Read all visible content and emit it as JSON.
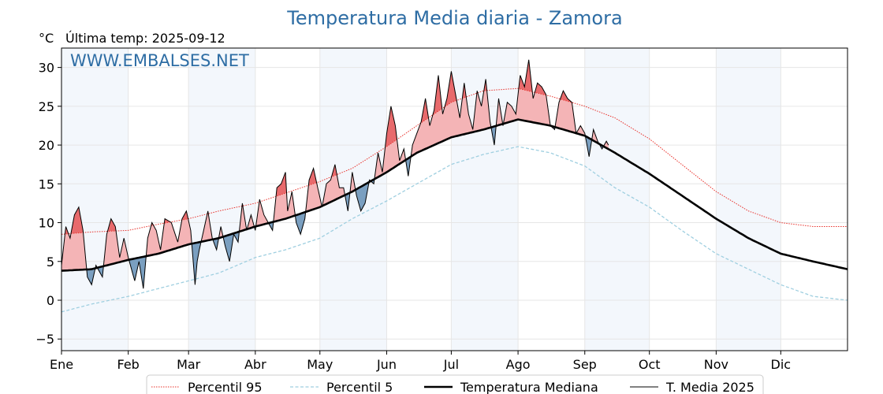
{
  "chart_data": {
    "type": "line",
    "title": "Temperatura Media diaria - Zamora",
    "unit_label": "°C",
    "last_temp_label": "Última temp: 2025-09-12",
    "watermark": "WWW.EMBALSES.NET",
    "xlabel": "",
    "ylabel": "°C",
    "ylim": [
      -6.5,
      32.5
    ],
    "yticks": [
      -5,
      0,
      5,
      10,
      15,
      20,
      25,
      30
    ],
    "ytick_labels": [
      "−5",
      "0",
      "5",
      "10",
      "15",
      "20",
      "25",
      "30"
    ],
    "xlim": [
      1,
      366
    ],
    "months": [
      {
        "label": "Ene",
        "start_day": 1
      },
      {
        "label": "Feb",
        "start_day": 32
      },
      {
        "label": "Mar",
        "start_day": 60
      },
      {
        "label": "Abr",
        "start_day": 91
      },
      {
        "label": "May",
        "start_day": 121
      },
      {
        "label": "Jun",
        "start_day": 152
      },
      {
        "label": "Jul",
        "start_day": 182
      },
      {
        "label": "Ago",
        "start_day": 213
      },
      {
        "label": "Sep",
        "start_day": 244
      },
      {
        "label": "Oct",
        "start_day": 274
      },
      {
        "label": "Nov",
        "start_day": 305
      },
      {
        "label": "Dic",
        "start_day": 335
      }
    ],
    "grid": true,
    "legend_position": "bottom",
    "colors": {
      "p95": "#e8302a",
      "p5": "#9fcfe0",
      "median": "#000000",
      "current": "#000000",
      "above_fill": "#f4b4b6",
      "above_p95_fill": "#e86a6c",
      "below_fill": "#7a9fc0",
      "month_band": "#f3f7fc",
      "title": "#2e6da4"
    },
    "series": [
      {
        "name": "Percentil 95",
        "style": "dotted",
        "x": [
          1,
          15,
          32,
          46,
          60,
          74,
          91,
          105,
          121,
          136,
          152,
          166,
          182,
          197,
          213,
          228,
          244,
          258,
          274,
          289,
          305,
          320,
          335,
          350,
          366
        ],
        "values": [
          8.5,
          8.8,
          9.0,
          9.8,
          10.5,
          11.5,
          12.5,
          13.8,
          15.3,
          17.0,
          19.8,
          22.5,
          25.5,
          27.0,
          27.3,
          26.3,
          25.0,
          23.5,
          20.8,
          17.5,
          14.0,
          11.5,
          10.0,
          9.5,
          9.5
        ]
      },
      {
        "name": "Percentil 5",
        "style": "dashed",
        "x": [
          1,
          15,
          32,
          46,
          60,
          74,
          91,
          105,
          121,
          136,
          152,
          166,
          182,
          197,
          213,
          228,
          244,
          258,
          274,
          289,
          305,
          320,
          335,
          350,
          366
        ],
        "values": [
          -1.5,
          -0.5,
          0.5,
          1.5,
          2.5,
          3.5,
          5.5,
          6.5,
          8.0,
          10.5,
          12.8,
          15.0,
          17.5,
          18.8,
          19.8,
          19.0,
          17.3,
          14.5,
          12.0,
          9.0,
          6.0,
          4.0,
          2.0,
          0.5,
          0.0
        ]
      },
      {
        "name": "Temperatura Mediana",
        "style": "thick",
        "x": [
          1,
          15,
          32,
          46,
          60,
          74,
          91,
          105,
          121,
          136,
          152,
          166,
          182,
          197,
          213,
          228,
          244,
          258,
          274,
          289,
          305,
          320,
          335,
          350,
          366
        ],
        "values": [
          3.8,
          4.0,
          5.2,
          6.0,
          7.2,
          8.0,
          9.5,
          10.5,
          12.0,
          14.0,
          16.5,
          19.0,
          21.0,
          22.0,
          23.3,
          22.5,
          21.2,
          19.0,
          16.3,
          13.5,
          10.5,
          8.0,
          6.0,
          5.0,
          4.0
        ]
      },
      {
        "name": "T. Media 2025",
        "style": "solid",
        "x": [
          1,
          3,
          5,
          7,
          9,
          11,
          13,
          15,
          17,
          20,
          22,
          24,
          26,
          28,
          30,
          32,
          34,
          35,
          37,
          39,
          41,
          43,
          45,
          47,
          49,
          52,
          55,
          57,
          59,
          61,
          63,
          64,
          65,
          67,
          69,
          71,
          73,
          75,
          77,
          79,
          81,
          83,
          85,
          87,
          89,
          91,
          93,
          95,
          97,
          99,
          101,
          103,
          105,
          106,
          108,
          110,
          112,
          114,
          116,
          118,
          120,
          122,
          124,
          126,
          128,
          130,
          132,
          134,
          136,
          138,
          140,
          142,
          144,
          146,
          148,
          150,
          152,
          154,
          156,
          158,
          160,
          162,
          164,
          166,
          168,
          170,
          172,
          174,
          176,
          178,
          180,
          182,
          184,
          186,
          188,
          190,
          192,
          194,
          196,
          198,
          200,
          202,
          204,
          206,
          208,
          210,
          212,
          214,
          216,
          218,
          220,
          222,
          224,
          226,
          228,
          230,
          232,
          234,
          236,
          238,
          240,
          242,
          244,
          246,
          248,
          250,
          252,
          254,
          255
        ],
        "values": [
          4.5,
          9.5,
          8.0,
          11.0,
          12.0,
          9.0,
          3.0,
          2.0,
          4.5,
          3.0,
          8.5,
          10.5,
          9.5,
          5.5,
          8.0,
          5.5,
          3.5,
          2.5,
          5.0,
          1.5,
          8.0,
          10.0,
          9.0,
          6.5,
          10.5,
          10.0,
          7.5,
          10.5,
          11.5,
          9.0,
          2.0,
          5.0,
          6.5,
          9.0,
          11.5,
          8.0,
          6.5,
          9.5,
          7.0,
          5.0,
          8.5,
          7.5,
          12.5,
          9.0,
          11.0,
          9.0,
          13.0,
          11.0,
          10.0,
          9.0,
          14.5,
          15.0,
          16.5,
          11.5,
          14.0,
          10.0,
          8.5,
          10.5,
          15.5,
          17.0,
          14.5,
          12.0,
          15.0,
          15.5,
          17.5,
          14.5,
          14.5,
          11.5,
          16.5,
          13.5,
          11.5,
          12.5,
          15.5,
          15.0,
          19.0,
          16.5,
          21.5,
          25.0,
          22.5,
          18.0,
          19.5,
          16.0,
          20.0,
          21.5,
          23.0,
          26.0,
          22.5,
          24.5,
          29.0,
          24.0,
          26.0,
          29.5,
          26.5,
          23.5,
          28.0,
          24.0,
          22.0,
          27.0,
          25.0,
          28.5,
          23.0,
          20.0,
          26.0,
          22.5,
          25.5,
          25.0,
          24.0,
          29.0,
          27.5,
          31.0,
          26.0,
          28.0,
          27.5,
          26.5,
          22.5,
          22.0,
          25.5,
          27.0,
          26.0,
          25.5,
          21.5,
          22.5,
          21.5,
          18.5,
          22.0,
          20.5,
          19.5,
          20.5,
          20.0
        ]
      }
    ],
    "legend": [
      {
        "label": "Percentil 95",
        "style": "dotted"
      },
      {
        "label": "Percentil 5",
        "style": "dashed"
      },
      {
        "label": "Temperatura Mediana",
        "style": "thick"
      },
      {
        "label": "T. Media 2025",
        "style": "solid"
      }
    ]
  }
}
